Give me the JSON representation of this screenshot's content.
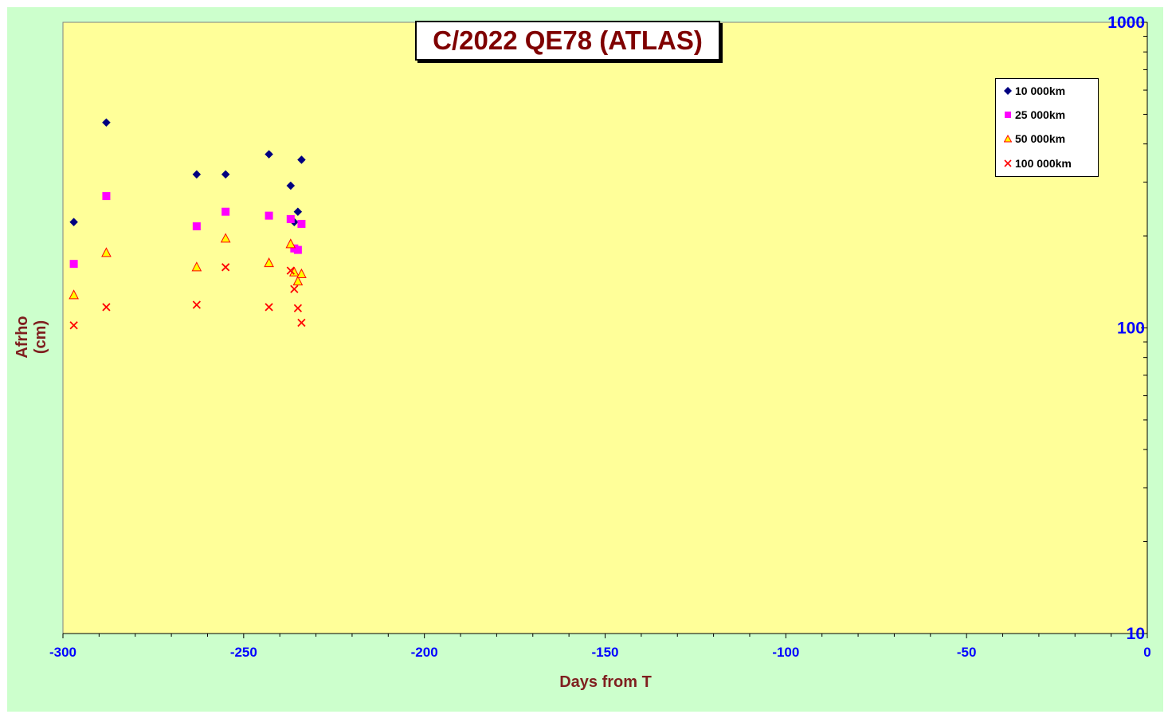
{
  "chart_data": {
    "type": "scatter",
    "title": "C/2022 QE78 (ATLAS)",
    "xlabel": "Days from T",
    "ylabel": "Afrho (cm)",
    "xlim": [
      -300,
      0
    ],
    "ylim": [
      10,
      1000
    ],
    "yscale": "log",
    "x_ticks": [
      "-300",
      "-250",
      "-200",
      "-150",
      "-100",
      "-50",
      "0"
    ],
    "y_ticks": [
      "10",
      "100",
      "1000"
    ],
    "legend_position": "top-right",
    "colors": {
      "plot_background": "#ffff99",
      "frame_background": "#ccffcc",
      "tick_label": "#0000ff",
      "axis_title": "#7f1f1f",
      "title": "#7f0000"
    },
    "series": [
      {
        "name": "10 000km",
        "marker": "diamond",
        "color": "#000080",
        "x": [
          -297,
          -288,
          -263,
          -255,
          -243,
          -237,
          -236,
          -235,
          -234
        ],
        "y": [
          222,
          470,
          318,
          318,
          370,
          292,
          222,
          240,
          355
        ]
      },
      {
        "name": "25 000km",
        "marker": "square",
        "color": "#ff00ff",
        "x": [
          -297,
          -288,
          -263,
          -255,
          -243,
          -237,
          -236,
          -235,
          -234
        ],
        "y": [
          162,
          270,
          215,
          240,
          233,
          227,
          182,
          180,
          219
        ]
      },
      {
        "name": "50 000km",
        "marker": "triangle",
        "color": "#ffff00",
        "x": [
          -297,
          -288,
          -263,
          -255,
          -243,
          -237,
          -236,
          -235,
          -234
        ],
        "y": [
          128,
          176,
          158,
          196,
          163,
          188,
          152,
          142,
          150
        ]
      },
      {
        "name": "100 000km",
        "marker": "x",
        "color": "#ff0000",
        "x": [
          -297,
          -288,
          -263,
          -255,
          -243,
          -237,
          -236,
          -235,
          -234
        ],
        "y": [
          102,
          117,
          119,
          158,
          117,
          154,
          134,
          116,
          104
        ]
      }
    ]
  }
}
